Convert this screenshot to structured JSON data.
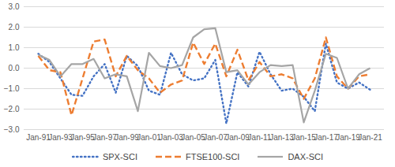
{
  "chart_data": {
    "type": "line",
    "categories": [
      "Jan-91",
      null,
      "Jan-93",
      null,
      "Jan-95",
      null,
      "Jan-97",
      null,
      "Jan-99",
      null,
      "Jan-01",
      null,
      "Jan-03",
      null,
      "Jan-05",
      null,
      "Jan-07",
      null,
      "Jan-09",
      null,
      "Jan-11",
      null,
      "Jan-13",
      null,
      "Jan-15",
      null,
      "Jan-17",
      null,
      "Jan-19",
      null,
      "Jan-21"
    ],
    "series": [
      {
        "name": "SPX-SCI",
        "color": "#4472c4",
        "line_style": "dotted",
        "values": [
          0.7,
          0.3,
          -0.5,
          -1.3,
          -1.35,
          -0.4,
          0.2,
          -1.2,
          0.6,
          0.1,
          -1.1,
          -1.3,
          0.75,
          -0.3,
          -0.6,
          -0.5,
          0.4,
          -2.7,
          -0.2,
          -0.9,
          0.8,
          -0.3,
          -1.1,
          -1.0,
          -1.4,
          -2.1,
          1.2,
          -0.7,
          -1.0,
          -0.7,
          -1.05
        ]
      },
      {
        "name": "FTSE100-SCI",
        "color": "#ed7d31",
        "line_style": "dashed",
        "values": [
          0.6,
          -0.1,
          -0.2,
          -2.3,
          -0.5,
          1.3,
          1.4,
          -0.4,
          0.6,
          -0.1,
          -0.5,
          -1.2,
          -0.8,
          -0.6,
          1.25,
          0.2,
          1.2,
          -0.4,
          0.9,
          -0.6,
          0.3,
          -0.4,
          -0.3,
          -0.5,
          -1.5,
          -0.5,
          1.5,
          -0.4,
          -1.0,
          -0.4,
          -0.3
        ]
      },
      {
        "name": "DAX-SCI",
        "color": "#a5a5a5",
        "line_style": "solid",
        "values": [
          0.65,
          0.4,
          -0.4,
          0.2,
          0.2,
          0.45,
          -0.5,
          -0.3,
          -0.4,
          -2.1,
          0.75,
          0.1,
          0.0,
          0.15,
          1.5,
          1.9,
          1.95,
          -0.2,
          -0.1,
          -0.8,
          -0.2,
          0.15,
          0.1,
          0.15,
          -2.65,
          -1.1,
          0.7,
          0.5,
          -1.0,
          -0.3,
          0.0
        ]
      }
    ],
    "ylim": [
      -3,
      3
    ],
    "yticks": [
      -3,
      -2,
      -1,
      0,
      1,
      2,
      3
    ],
    "grid": true,
    "legend": "bottom"
  }
}
